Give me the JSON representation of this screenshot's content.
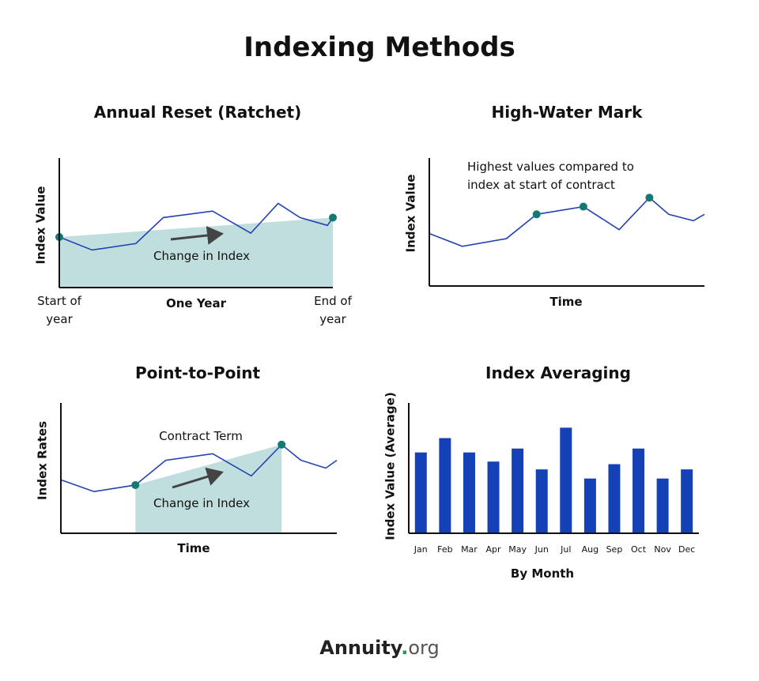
{
  "title": "Indexing Methods",
  "chart_data": [
    {
      "type": "line",
      "title": "Annual Reset (Ratchet)",
      "x_label": "One Year",
      "y_label": "Index Value",
      "x": [
        0,
        12,
        28,
        38,
        56,
        70,
        80,
        88,
        98,
        100
      ],
      "values": [
        39,
        29,
        34,
        54,
        59,
        42,
        65,
        54,
        48,
        54
      ],
      "xlim": [
        0,
        100
      ],
      "ylim": [
        0,
        100
      ],
      "xticks": [
        {
          "value": 0,
          "label": "Start of year"
        },
        {
          "value": 100,
          "label": "End of year"
        }
      ],
      "color": "#2443b0",
      "marker_color": "#127a72",
      "shade_color": "#c0dede",
      "highlight_points": [
        0,
        9
      ],
      "shade_between_highlights": true,
      "annotations": [
        "Change in Index"
      ]
    },
    {
      "type": "line",
      "title": "High-Water Mark",
      "x_label": "Time",
      "y_label": "Index Value",
      "x": [
        0,
        12,
        28,
        39,
        56,
        69,
        80,
        87,
        96,
        100
      ],
      "values": [
        41,
        31,
        37,
        56,
        62,
        44,
        69,
        56,
        51,
        56
      ],
      "xlim": [
        0,
        100
      ],
      "ylim": [
        0,
        100
      ],
      "xticks": [],
      "color": "#2443b0",
      "marker_color": "#127a72",
      "shade_color": "#c0dede",
      "highlight_points": [
        3,
        4,
        6
      ],
      "shade_between_highlights": false,
      "annotations": [
        "Highest values compared to index at start of contract"
      ]
    },
    {
      "type": "line",
      "title": "Point-to-Point",
      "x_label": "Time",
      "y_label": "Index Rates",
      "x": [
        0,
        12,
        27,
        38,
        55,
        69,
        80,
        87,
        96,
        100
      ],
      "values": [
        41,
        32,
        37,
        56,
        61,
        44,
        68,
        56,
        50,
        56
      ],
      "xlim": [
        0,
        100
      ],
      "ylim": [
        0,
        100
      ],
      "xticks": [],
      "color": "#2443b0",
      "marker_color": "#127a72",
      "shade_color": "#c0dede",
      "highlight_points": [
        2,
        6
      ],
      "shade_between_highlights": true,
      "annotations": [
        "Contract Term",
        "Change in Index"
      ]
    },
    {
      "type": "bar",
      "title": "Index Averaging",
      "x_label": "By Month",
      "y_label": "Index Value (Average)",
      "categories": [
        "Jan",
        "Feb",
        "Mar",
        "Apr",
        "May",
        "Jun",
        "Jul",
        "Aug",
        "Sep",
        "Oct",
        "Nov",
        "Dec"
      ],
      "values": [
        62,
        73,
        62,
        55,
        65,
        49,
        81,
        42,
        53,
        65,
        42,
        49
      ],
      "ylim": [
        0,
        100
      ],
      "color": "#1440b8"
    }
  ],
  "footer": {
    "name": "Annuity",
    "dot": ".",
    "tld": "org"
  }
}
